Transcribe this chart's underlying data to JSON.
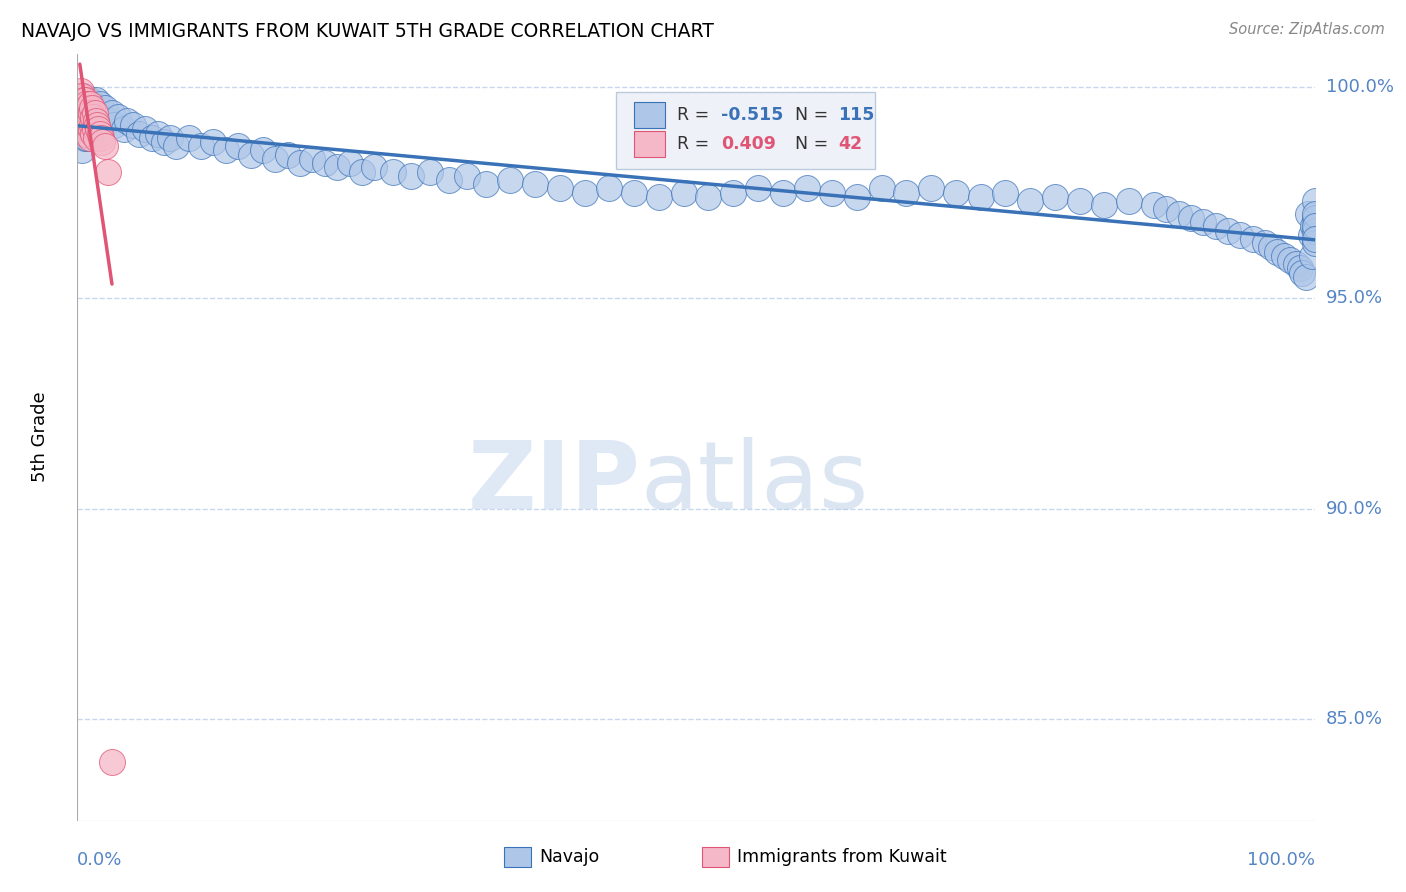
{
  "title": "NAVAJO VS IMMIGRANTS FROM KUWAIT 5TH GRADE CORRELATION CHART",
  "source": "Source: ZipAtlas.com",
  "ylabel": "5th Grade",
  "navajo_R": -0.515,
  "navajo_N": 115,
  "kuwait_R": 0.409,
  "kuwait_N": 42,
  "ylim": [
    0.826,
    1.008
  ],
  "xlim": [
    0.0,
    1.0
  ],
  "navajo_color": "#aec6e8",
  "navajo_line_color": "#3a72b8",
  "kuwait_color": "#f5b8c8",
  "kuwait_line_color": "#e05575",
  "grid_color": "#c8d8ec",
  "background_color": "#ffffff",
  "right_label_color": "#5585c5",
  "navajo_x": [
    0.003,
    0.003,
    0.004,
    0.005,
    0.005,
    0.006,
    0.006,
    0.007,
    0.007,
    0.008,
    0.008,
    0.009,
    0.009,
    0.01,
    0.01,
    0.012,
    0.012,
    0.013,
    0.015,
    0.015,
    0.016,
    0.018,
    0.02,
    0.022,
    0.025,
    0.028,
    0.03,
    0.033,
    0.038,
    0.04,
    0.045,
    0.05,
    0.055,
    0.06,
    0.065,
    0.07,
    0.075,
    0.08,
    0.09,
    0.1,
    0.11,
    0.12,
    0.13,
    0.14,
    0.15,
    0.16,
    0.17,
    0.18,
    0.19,
    0.2,
    0.21,
    0.22,
    0.23,
    0.24,
    0.255,
    0.27,
    0.285,
    0.3,
    0.315,
    0.33,
    0.35,
    0.37,
    0.39,
    0.41,
    0.43,
    0.45,
    0.47,
    0.49,
    0.51,
    0.53,
    0.55,
    0.57,
    0.59,
    0.61,
    0.63,
    0.65,
    0.67,
    0.69,
    0.71,
    0.73,
    0.75,
    0.77,
    0.79,
    0.81,
    0.83,
    0.85,
    0.87,
    0.88,
    0.89,
    0.9,
    0.91,
    0.92,
    0.93,
    0.94,
    0.95,
    0.96,
    0.965,
    0.97,
    0.975,
    0.98,
    0.985,
    0.988,
    0.99,
    0.993,
    0.995,
    0.997,
    0.998,
    0.999,
    1.0,
    1.0,
    1.0,
    1.0,
    1.0,
    1.0,
    1.0
  ],
  "navajo_y": [
    0.995,
    0.99,
    0.985,
    0.998,
    0.992,
    0.995,
    0.988,
    0.996,
    0.99,
    0.994,
    0.988,
    0.995,
    0.99,
    0.997,
    0.991,
    0.996,
    0.99,
    0.994,
    0.997,
    0.991,
    0.994,
    0.996,
    0.993,
    0.995,
    0.992,
    0.994,
    0.991,
    0.993,
    0.99,
    0.992,
    0.991,
    0.989,
    0.99,
    0.988,
    0.989,
    0.987,
    0.988,
    0.986,
    0.988,
    0.986,
    0.987,
    0.985,
    0.986,
    0.984,
    0.985,
    0.983,
    0.984,
    0.982,
    0.983,
    0.982,
    0.981,
    0.982,
    0.98,
    0.981,
    0.98,
    0.979,
    0.98,
    0.978,
    0.979,
    0.977,
    0.978,
    0.977,
    0.976,
    0.975,
    0.976,
    0.975,
    0.974,
    0.975,
    0.974,
    0.975,
    0.976,
    0.975,
    0.976,
    0.975,
    0.974,
    0.976,
    0.975,
    0.976,
    0.975,
    0.974,
    0.975,
    0.973,
    0.974,
    0.973,
    0.972,
    0.973,
    0.972,
    0.971,
    0.97,
    0.969,
    0.968,
    0.967,
    0.966,
    0.965,
    0.964,
    0.963,
    0.962,
    0.961,
    0.96,
    0.959,
    0.958,
    0.957,
    0.956,
    0.955,
    0.97,
    0.965,
    0.96,
    0.967,
    0.973,
    0.969,
    0.966,
    0.963,
    0.97,
    0.967,
    0.964
  ],
  "kuwait_x": [
    0.002,
    0.002,
    0.003,
    0.003,
    0.003,
    0.004,
    0.004,
    0.004,
    0.005,
    0.005,
    0.005,
    0.006,
    0.006,
    0.006,
    0.007,
    0.007,
    0.007,
    0.008,
    0.008,
    0.009,
    0.009,
    0.01,
    0.01,
    0.01,
    0.011,
    0.011,
    0.012,
    0.012,
    0.013,
    0.013,
    0.014,
    0.014,
    0.015,
    0.015,
    0.016,
    0.017,
    0.018,
    0.019,
    0.02,
    0.022,
    0.025,
    0.028
  ],
  "kuwait_y": [
    0.998,
    0.995,
    0.999,
    0.996,
    0.993,
    0.998,
    0.995,
    0.992,
    0.997,
    0.994,
    0.991,
    0.997,
    0.994,
    0.99,
    0.996,
    0.993,
    0.989,
    0.995,
    0.991,
    0.994,
    0.99,
    0.996,
    0.992,
    0.988,
    0.994,
    0.99,
    0.995,
    0.991,
    0.993,
    0.989,
    0.994,
    0.99,
    0.992,
    0.988,
    0.991,
    0.99,
    0.989,
    0.988,
    0.987,
    0.986,
    0.98,
    0.84
  ]
}
